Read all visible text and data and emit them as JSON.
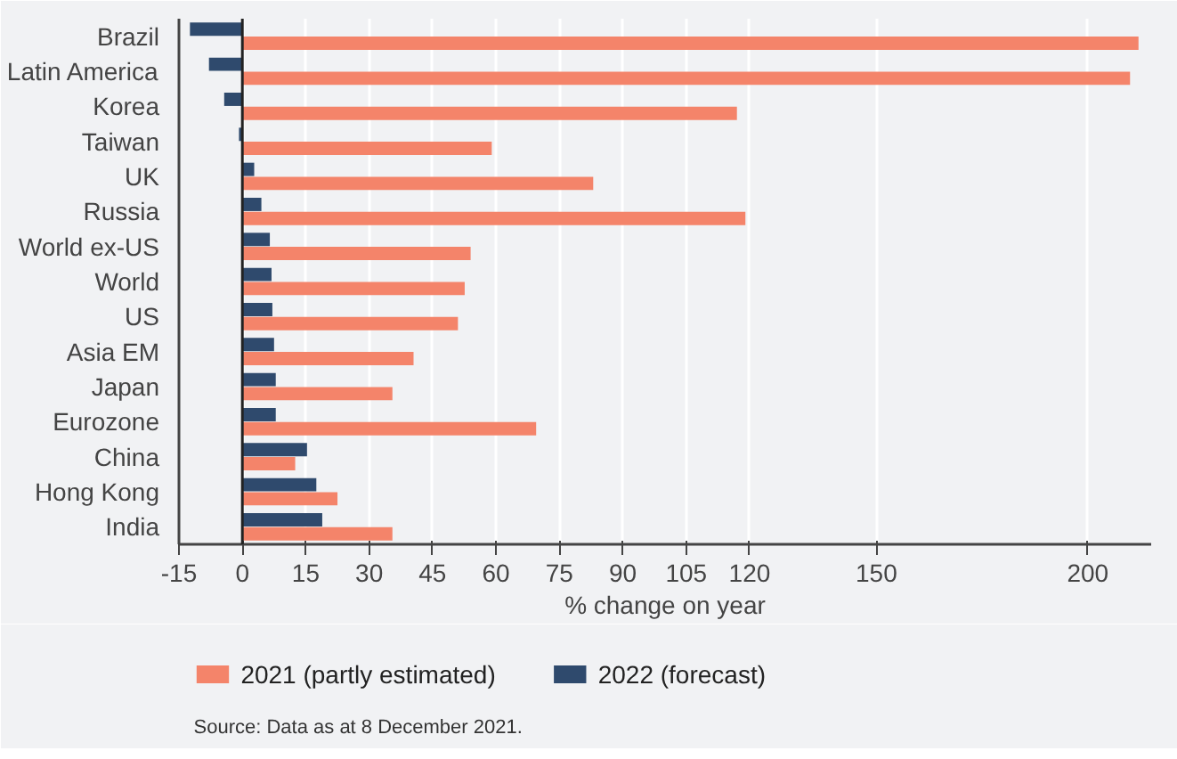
{
  "chart_data": {
    "type": "bar",
    "orientation": "horizontal",
    "xlabel": "% change on year",
    "categories": [
      "Brazil",
      "Latin America",
      "Korea",
      "Taiwan",
      "UK",
      "Russia",
      "World ex-US",
      "World",
      "US",
      "Asia EM",
      "Japan",
      "Eurozone",
      "China",
      "Hong Kong",
      "India"
    ],
    "series": [
      {
        "name": "2021 (partly estimated)",
        "color": "#f4846a",
        "values": [
          212,
          210,
          117,
          59,
          83,
          119,
          54,
          52.6,
          51,
          40.5,
          35.5,
          69.5,
          12.5,
          22.5,
          35.5
        ]
      },
      {
        "name": "2022 (forecast)",
        "color": "#2f4a6d",
        "values": [
          -12.4,
          -7.9,
          -4.3,
          -0.8,
          2.8,
          4.5,
          6.5,
          6.9,
          7.1,
          7.5,
          7.9,
          7.9,
          15.3,
          17.5,
          18.9
        ]
      }
    ],
    "xlim": [
      -15,
      215
    ],
    "xticks": [
      -15,
      0,
      15,
      30,
      45,
      60,
      75,
      90,
      105,
      120,
      150,
      200
    ],
    "grid": "x",
    "legend": "bottom",
    "annotations": [
      "Source: Data as at 8 December 2021."
    ]
  }
}
